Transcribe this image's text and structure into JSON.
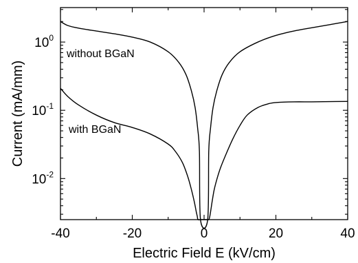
{
  "chart_data": {
    "type": "line",
    "xlabel": "Electric Field E (kV/cm)",
    "ylabel": "Current (mA/mm)",
    "xlim": [
      -40,
      40
    ],
    "ylim": [
      0.0025,
      3.2
    ],
    "y_scale": "log",
    "x_ticks": [
      -40,
      -20,
      0,
      20,
      40
    ],
    "x_tick_labels": [
      "-40",
      "-20",
      "0",
      "20",
      "40"
    ],
    "y_ticks": [
      {
        "value": 1,
        "base": "10",
        "exp": "0"
      },
      {
        "value": 0.1,
        "base": "10",
        "exp": "-1"
      },
      {
        "value": 0.01,
        "base": "10",
        "exp": "-2"
      }
    ],
    "annotations": [
      {
        "text": "without BGaN",
        "x": -38.5,
        "y": 0.72
      },
      {
        "text": "with BGaN",
        "x": -38.5,
        "y": 0.072
      }
    ],
    "series": [
      {
        "x": [
          -40,
          -38,
          -35,
          -30,
          -25,
          -20,
          -15,
          -10,
          -7,
          -5,
          -3.5,
          -2.5,
          -1.8,
          -1.3,
          -1.0,
          1.0,
          1.3,
          1.8,
          2.5,
          3.5,
          5,
          7,
          10,
          15,
          20,
          25,
          30,
          35,
          40
        ],
        "y": [
          2.0,
          1.75,
          1.6,
          1.45,
          1.32,
          1.18,
          1.0,
          0.72,
          0.5,
          0.33,
          0.19,
          0.11,
          0.055,
          0.025,
          0.0025,
          0.0025,
          0.025,
          0.055,
          0.11,
          0.19,
          0.33,
          0.5,
          0.72,
          1.0,
          1.25,
          1.45,
          1.62,
          1.8,
          2.0
        ]
      },
      {
        "x": [
          -40,
          -38,
          -35,
          -30,
          -25,
          -20,
          -15,
          -10,
          -8,
          -6,
          -4.5,
          -3.5,
          -2.7,
          -2.2,
          -1.9,
          -1.7,
          -1.0,
          -0.3,
          0.2,
          0.7,
          1.3,
          1.6,
          1.9,
          2.3,
          2.8,
          3.5,
          4.5,
          6,
          8,
          10,
          12,
          15,
          18,
          20,
          25,
          30,
          35,
          40
        ],
        "y": [
          0.21,
          0.16,
          0.12,
          0.085,
          0.066,
          0.056,
          0.045,
          0.032,
          0.025,
          0.017,
          0.0105,
          0.0068,
          0.0045,
          0.0033,
          0.0028,
          0.0025,
          0.0025,
          0.0025,
          0.0025,
          0.0025,
          0.0025,
          0.0028,
          0.0035,
          0.0048,
          0.0068,
          0.0095,
          0.014,
          0.022,
          0.038,
          0.06,
          0.085,
          0.11,
          0.125,
          0.13,
          0.133,
          0.133,
          0.134,
          0.135
        ]
      }
    ]
  }
}
